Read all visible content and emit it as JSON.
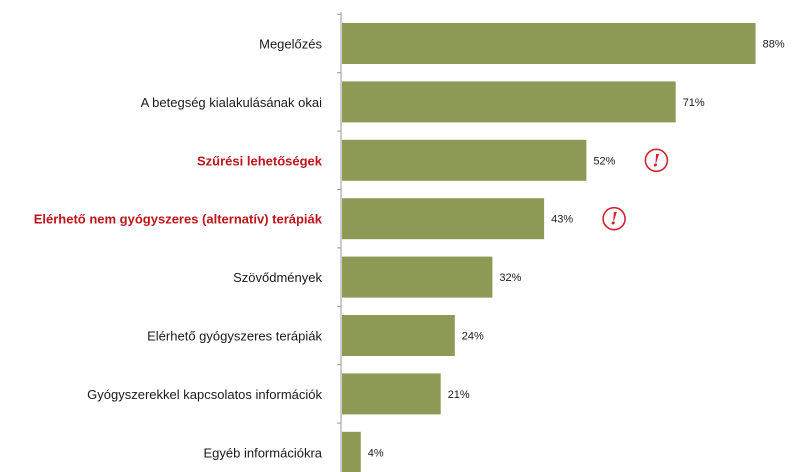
{
  "chart_data": {
    "type": "bar",
    "orientation": "horizontal",
    "categories": [
      "Megelőzés",
      "A betegség kialakulásának okai",
      "Szűrési lehetőségek",
      "Elérhető nem gyógyszeres (alternatív) terápiák",
      "Szövődmények",
      "Elérhető gyógyszeres terápiák",
      "Gyógyszerekkel kapcsolatos információk",
      "Egyéb információkra"
    ],
    "values": [
      88,
      71,
      52,
      43,
      32,
      24,
      21,
      4
    ],
    "value_labels": [
      "88%",
      "71%",
      "52%",
      "43%",
      "32%",
      "24%",
      "21%",
      "4%"
    ],
    "highlighted": [
      false,
      false,
      true,
      true,
      false,
      false,
      false,
      false
    ],
    "warning_icon": "exclamation-circle-icon",
    "xlim": [
      0,
      100
    ],
    "grid": false,
    "legend": "none",
    "colors": {
      "bar": "#8d9a55",
      "highlight_text": "#c0141b",
      "warning": "#d2222d",
      "axis": "#9a9a9a",
      "text": "#1a1a1a"
    }
  }
}
